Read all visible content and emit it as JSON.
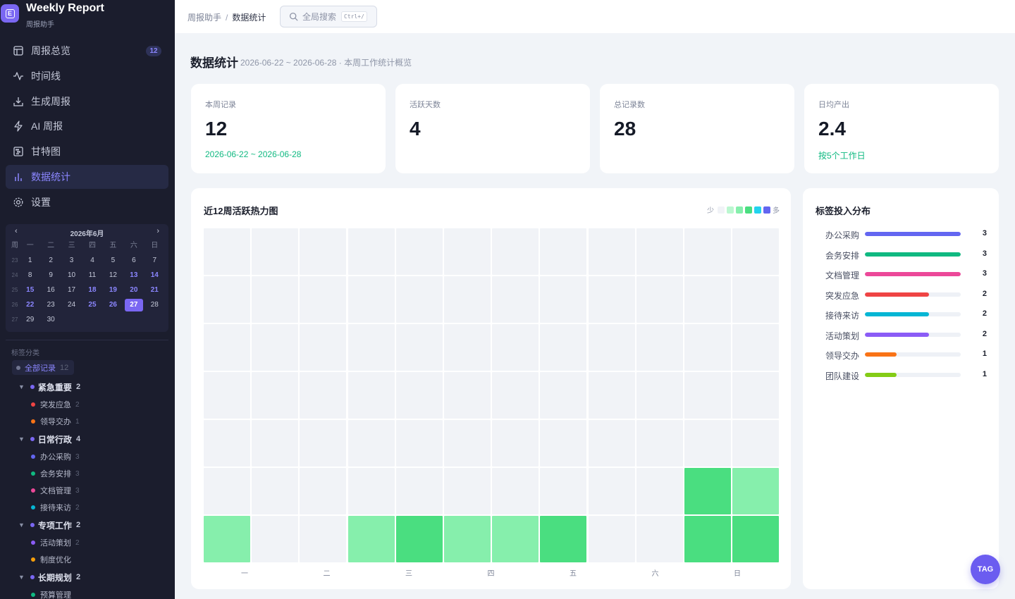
{
  "brand": {
    "name": "Weekly Report",
    "subtitle": "周报助手",
    "logo_icon": "calendar-logo-icon"
  },
  "nav": {
    "items": [
      {
        "label": "周报总览",
        "icon": "layout-icon",
        "badge": "12",
        "active": false
      },
      {
        "label": "时间线",
        "icon": "activity-icon",
        "active": false
      },
      {
        "label": "生成周报",
        "icon": "download-icon",
        "active": false
      },
      {
        "label": "AI 周报",
        "icon": "zap-icon",
        "active": false
      },
      {
        "label": "甘特图",
        "icon": "gantt-icon",
        "active": false
      },
      {
        "label": "数据统计",
        "icon": "bar-chart-icon",
        "active": true
      },
      {
        "label": "设置",
        "icon": "gear-icon",
        "active": false
      }
    ]
  },
  "calendar": {
    "title": "2026年6月",
    "prev": "‹",
    "next": "›",
    "weekday_header": [
      "周",
      "一",
      "二",
      "三",
      "四",
      "五",
      "六",
      "日"
    ],
    "weeks": [
      {
        "wk": "23",
        "days": [
          "1",
          "2",
          "3",
          "4",
          "5",
          "6",
          "7"
        ],
        "highlight": []
      },
      {
        "wk": "24",
        "days": [
          "8",
          "9",
          "10",
          "11",
          "12",
          "13",
          "14"
        ],
        "highlight": [
          "13",
          "14"
        ]
      },
      {
        "wk": "25",
        "days": [
          "15",
          "16",
          "17",
          "18",
          "19",
          "20",
          "21"
        ],
        "highlight": [
          "15",
          "18",
          "19",
          "20",
          "21"
        ]
      },
      {
        "wk": "26",
        "days": [
          "22",
          "23",
          "24",
          "25",
          "26",
          "27",
          "28"
        ],
        "highlight": [
          "22",
          "25",
          "26"
        ],
        "today": "27"
      },
      {
        "wk": "27",
        "days": [
          "29",
          "30",
          "",
          "",
          "",
          "",
          ""
        ],
        "highlight": []
      }
    ]
  },
  "tags": {
    "title": "标签分类",
    "all": {
      "label": "全部记录",
      "count": "12"
    },
    "groups": [
      {
        "label": "紧急重要",
        "count": "2",
        "items": [
          {
            "label": "突发应急",
            "count": "2",
            "color": "#ef4444"
          },
          {
            "label": "领导交办",
            "count": "1",
            "color": "#f97316"
          }
        ]
      },
      {
        "label": "日常行政",
        "count": "4",
        "items": [
          {
            "label": "办公采购",
            "count": "3",
            "color": "#6366f1"
          },
          {
            "label": "会务安排",
            "count": "3",
            "color": "#10b981"
          },
          {
            "label": "文档管理",
            "count": "3",
            "color": "#ec4899"
          },
          {
            "label": "接待来访",
            "count": "2",
            "color": "#06b6d4"
          }
        ]
      },
      {
        "label": "专项工作",
        "count": "2",
        "items": [
          {
            "label": "活动策划",
            "count": "2",
            "color": "#8b5cf6"
          },
          {
            "label": "制度优化",
            "count": "",
            "color": "#f59e0b"
          }
        ]
      },
      {
        "label": "长期规划",
        "count": "2",
        "items": [
          {
            "label": "预算管理",
            "count": "",
            "color": "#10b981"
          }
        ]
      }
    ]
  },
  "topbar": {
    "breadcrumb": [
      "周报助手",
      "数据统计"
    ],
    "search_placeholder": "全局搜索",
    "search_shortcut": "Ctrl+/"
  },
  "page": {
    "title": "数据统计",
    "subtitle": "2026-06-22 ~ 2026-06-28 · 本周工作统计概览"
  },
  "stats": [
    {
      "label": "本周记录",
      "value": "12",
      "note": "2026-06-22 ~ 2026-06-28"
    },
    {
      "label": "活跃天数",
      "value": "4",
      "note": ""
    },
    {
      "label": "总记录数",
      "value": "28",
      "note": ""
    },
    {
      "label": "日均产出",
      "value": "2.4",
      "note": "按5个工作日"
    }
  ],
  "heatmap": {
    "title": "近12周活跃热力图",
    "legend_low": "少",
    "legend_high": "多",
    "palette": [
      "#f1f3f7",
      "#bbf7d0",
      "#86efac",
      "#4ade80",
      "#22d3ee",
      "#6366f1"
    ],
    "day_labels": [
      "一",
      "二",
      "三",
      "四",
      "五",
      "六",
      "日"
    ],
    "levels": [
      [
        0,
        0,
        0,
        0,
        0,
        0,
        0,
        0,
        0,
        0,
        0,
        0
      ],
      [
        0,
        0,
        0,
        0,
        0,
        0,
        0,
        0,
        0,
        0,
        0,
        0
      ],
      [
        0,
        0,
        0,
        0,
        0,
        0,
        0,
        0,
        0,
        0,
        0,
        0
      ],
      [
        0,
        0,
        0,
        0,
        0,
        0,
        0,
        0,
        0,
        0,
        0,
        0
      ],
      [
        0,
        0,
        0,
        0,
        0,
        0,
        0,
        0,
        0,
        0,
        0,
        0
      ],
      [
        0,
        0,
        0,
        0,
        0,
        0,
        0,
        0,
        0,
        0,
        3,
        2
      ],
      [
        2,
        0,
        0,
        2,
        3,
        2,
        2,
        3,
        0,
        0,
        3,
        3
      ]
    ]
  },
  "distribution": {
    "title": "标签投入分布",
    "max": 3,
    "rows": [
      {
        "label": "办公采购",
        "value": 3,
        "color": "#6366f1"
      },
      {
        "label": "会务安排",
        "value": 3,
        "color": "#10b981"
      },
      {
        "label": "文档管理",
        "value": 3,
        "color": "#ec4899"
      },
      {
        "label": "突发应急",
        "value": 2,
        "color": "#ef4444"
      },
      {
        "label": "接待来访",
        "value": 2,
        "color": "#06b6d4"
      },
      {
        "label": "活动策划",
        "value": 2,
        "color": "#8b5cf6"
      },
      {
        "label": "领导交办",
        "value": 1,
        "color": "#f97316"
      },
      {
        "label": "团队建设",
        "value": 1,
        "color": "#84cc16"
      }
    ]
  },
  "fab": {
    "label": "TAG"
  }
}
